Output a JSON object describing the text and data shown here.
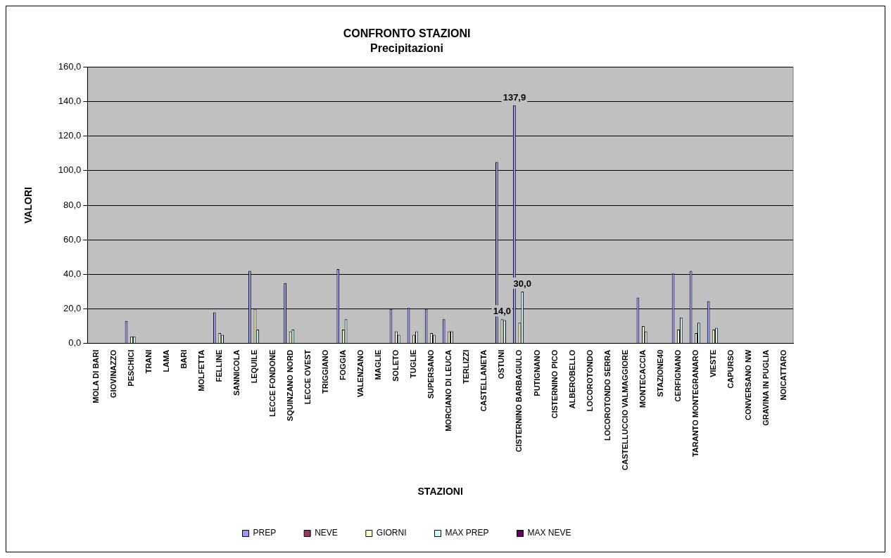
{
  "chart_data": {
    "type": "bar",
    "title": "CONFRONTO STAZIONI",
    "subtitle": "Precipitazioni",
    "xlabel": "STAZIONI",
    "ylabel": "VALORI",
    "categories": [
      "MOLA DI BARI",
      "GIOVINAZZO",
      "PESCHICI",
      "TRANI",
      "LAMA",
      "BARI",
      "MOLFETTA",
      "FELLINE",
      "SANNICOLA",
      "LEQUILE",
      "LECCE FONDONE",
      "SQUINZANO NORD",
      "LECCE OVEST",
      "TRIGGIANO",
      "FOGGIA",
      "VALENZANO",
      "MAGLIE",
      "SOLETO",
      "TUGLIE",
      "SUPERSANO",
      "MORCIANO DI LEUCA",
      "TERLIZZI",
      "CASTELLANETA",
      "OSTUNI",
      "CISTERNINO BARBAGIULO",
      "PUTIGNANO",
      "CISTERNINO PICO",
      "ALBEROBELLO",
      "LOCOROTONDO",
      "LOCOROTONDO SERRA",
      "CASTELLUCCIO VALMAGGIORE",
      "MONTECACCIA",
      "STAZIONE40",
      "CERFIGNANO",
      "TARANTO MONTEGRANARO",
      "VIESTE",
      "CAPURSO",
      "CONVERSANO NW",
      "GRAVINA IN PUGLIA",
      "NOICATTARO"
    ],
    "series": [
      {
        "name": "PREP",
        "color": "#9999ff",
        "values": [
          0,
          0,
          13,
          0,
          0,
          0,
          0,
          18,
          0,
          42,
          0,
          35,
          0,
          0,
          43,
          0,
          0,
          20,
          20.5,
          20,
          14,
          0,
          0,
          105,
          137.9,
          0,
          0,
          0,
          0,
          0,
          0,
          26.5,
          0,
          40.5,
          42,
          24.5,
          0,
          0,
          0,
          0
        ],
        "value_labels": [
          null,
          null,
          null,
          null,
          null,
          null,
          null,
          null,
          null,
          null,
          null,
          null,
          null,
          null,
          null,
          null,
          null,
          null,
          null,
          null,
          null,
          null,
          null,
          null,
          "137,9",
          null,
          null,
          null,
          null,
          null,
          null,
          null,
          null,
          null,
          null,
          null,
          null,
          null,
          null,
          null
        ]
      },
      {
        "name": "NEVE",
        "color": "#993366",
        "values": [
          0,
          0,
          0,
          0,
          0,
          0,
          0,
          0,
          0,
          0,
          0,
          0,
          0,
          0,
          0,
          0,
          0,
          0,
          0,
          0,
          0,
          0,
          0,
          0,
          0,
          0,
          0,
          0,
          0,
          0,
          0,
          0,
          0,
          0,
          0,
          0,
          0,
          0,
          0,
          0
        ]
      },
      {
        "name": "GIORNI",
        "color": "#ffffcc",
        "values": [
          0,
          0,
          4,
          0,
          0,
          0,
          0,
          6,
          0,
          20,
          0,
          7,
          0,
          0,
          8,
          0,
          0,
          7,
          5,
          6,
          7,
          0,
          0,
          14,
          12,
          0,
          0,
          0,
          0,
          0,
          0,
          10,
          0,
          8,
          6,
          8,
          0,
          0,
          0,
          0
        ],
        "value_labels": [
          null,
          null,
          null,
          null,
          null,
          null,
          null,
          null,
          null,
          null,
          null,
          null,
          null,
          null,
          null,
          null,
          null,
          null,
          null,
          null,
          null,
          null,
          null,
          "14,0",
          null,
          null,
          null,
          null,
          null,
          null,
          null,
          null,
          null,
          null,
          null,
          null,
          null,
          null,
          null,
          null
        ]
      },
      {
        "name": "MAX PREP",
        "color": "#ccffff",
        "values": [
          0,
          0,
          4,
          0,
          0,
          0,
          0,
          5,
          0,
          8,
          0,
          8,
          0,
          0,
          14,
          0,
          0,
          5,
          7,
          5,
          7,
          0,
          0,
          13.5,
          30,
          0,
          0,
          0,
          0,
          0,
          0,
          7,
          0,
          15,
          12,
          9,
          0,
          0,
          0,
          0
        ],
        "value_labels": [
          null,
          null,
          null,
          null,
          null,
          null,
          null,
          null,
          null,
          null,
          null,
          null,
          null,
          null,
          null,
          null,
          null,
          null,
          null,
          null,
          null,
          null,
          null,
          null,
          "30,0",
          null,
          null,
          null,
          null,
          null,
          null,
          null,
          null,
          null,
          null,
          null,
          null,
          null,
          null,
          null
        ]
      },
      {
        "name": "MAX NEVE",
        "color": "#660066",
        "values": [
          0,
          0,
          0,
          0,
          0,
          0,
          0,
          0,
          0,
          0,
          0,
          0,
          0,
          0,
          0,
          0,
          0,
          0,
          0,
          0,
          0,
          0,
          0,
          0,
          0,
          0,
          0,
          0,
          0,
          0,
          0,
          0,
          0,
          0,
          0,
          0,
          0,
          0,
          0,
          0
        ]
      }
    ],
    "ylim": [
      0,
      160
    ],
    "yticks": [
      {
        "value": 0,
        "label": "0,0"
      },
      {
        "value": 20,
        "label": "20,0"
      },
      {
        "value": 40,
        "label": "40,0"
      },
      {
        "value": 60,
        "label": "60,0"
      },
      {
        "value": 80,
        "label": "80,0"
      },
      {
        "value": 100,
        "label": "100,0"
      },
      {
        "value": 120,
        "label": "120,0"
      },
      {
        "value": 140,
        "label": "140,0"
      },
      {
        "value": 160,
        "label": "160,0"
      }
    ],
    "grid": "y",
    "legend": "bottom"
  }
}
